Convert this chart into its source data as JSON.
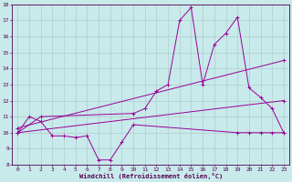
{
  "xlabel": "Windchill (Refroidissement éolien,°C)",
  "background_color": "#c8eaea",
  "grid_color": "#b0cccc",
  "line_color": "#990099",
  "xlim": [
    -0.5,
    23.5
  ],
  "ylim": [
    8,
    18
  ],
  "yticks": [
    8,
    9,
    10,
    11,
    12,
    13,
    14,
    15,
    16,
    17,
    18
  ],
  "xticks": [
    0,
    1,
    2,
    3,
    4,
    5,
    6,
    7,
    8,
    9,
    10,
    11,
    12,
    13,
    14,
    15,
    16,
    17,
    18,
    19,
    20,
    21,
    22,
    23
  ],
  "line1_x": [
    0,
    1,
    2,
    3,
    4,
    5,
    6,
    7,
    8,
    9,
    10,
    19,
    20,
    21,
    22,
    23
  ],
  "line1_y": [
    10,
    11,
    10.7,
    9.8,
    9.8,
    9.7,
    9.8,
    8.3,
    8.3,
    9.4,
    10.5,
    10,
    10,
    10,
    10,
    10
  ],
  "line2_x": [
    0,
    2,
    10,
    11,
    12,
    13,
    14,
    15,
    16,
    17,
    18,
    19,
    20,
    21,
    22,
    23
  ],
  "line2_y": [
    10,
    11,
    11.2,
    11.5,
    12.6,
    13.0,
    17.0,
    17.8,
    13.0,
    15.5,
    16.2,
    17.2,
    12.8,
    12.2,
    11.5,
    10
  ],
  "line3_x": [
    0,
    23
  ],
  "line3_y": [
    10.0,
    12.0
  ],
  "line4_x": [
    0,
    23
  ],
  "line4_y": [
    10.3,
    14.5
  ]
}
